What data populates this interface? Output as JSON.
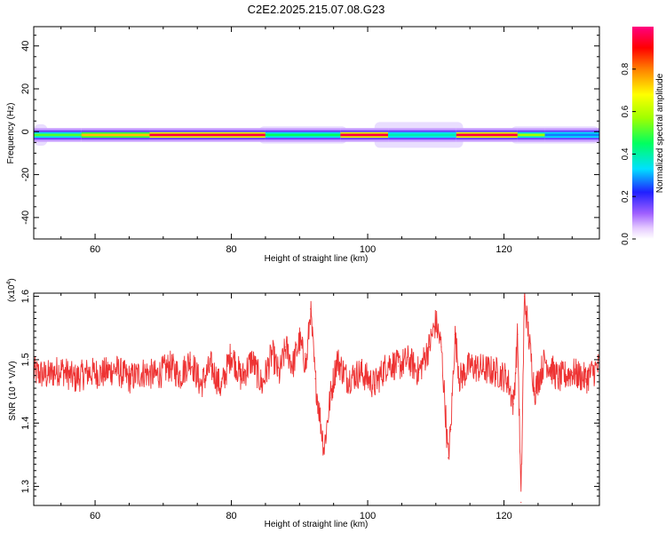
{
  "figure_title": "C2E2.2025.215.07.08.G23",
  "chart_data": [
    {
      "type": "heatmap",
      "xlabel": "Height of straight line (km)",
      "ylabel": "Frequency (Hz)",
      "xlim": [
        51,
        134
      ],
      "ylim": [
        -50,
        49
      ],
      "x_ticks": [
        60,
        80,
        100,
        120
      ],
      "x_tick_labels": [
        "60",
        "80",
        "100",
        "120"
      ],
      "y_ticks": [
        40,
        20,
        0,
        -20,
        -40
      ],
      "y_tick_labels": [
        "40",
        "20",
        "0",
        "-20",
        "-40"
      ],
      "colorbar": {
        "label": "Normalized spectral amplitude",
        "range": [
          0,
          1
        ],
        "ticks": [
          0.0,
          0.2,
          0.4,
          0.6,
          0.8
        ],
        "tick_labels": [
          "0.0",
          "0.2",
          "0.4",
          "0.6",
          "0.8"
        ],
        "colormap": [
          "#ffffff",
          "#e6ccff",
          "#a060ff",
          "#2020ff",
          "#00e0ff",
          "#00ff60",
          "#a0ff00",
          "#ffff00",
          "#ff8000",
          "#ff0000",
          "#ff0080"
        ]
      },
      "ridge": {
        "center_frequency": -1.5,
        "bands": [
          {
            "from": 51,
            "to": 58,
            "intensity": 0.55
          },
          {
            "from": 58,
            "to": 68,
            "intensity": 0.75
          },
          {
            "from": 68,
            "to": 85,
            "intensity": 0.95
          },
          {
            "from": 85,
            "to": 96,
            "intensity": 0.5
          },
          {
            "from": 96,
            "to": 103,
            "intensity": 0.95
          },
          {
            "from": 103,
            "to": 113,
            "intensity": 0.45
          },
          {
            "from": 113,
            "to": 122,
            "intensity": 0.95
          },
          {
            "from": 122,
            "to": 126,
            "intensity": 0.6
          },
          {
            "from": 126,
            "to": 134,
            "intensity": 0.35
          }
        ],
        "halo": [
          {
            "from": 51,
            "to": 53,
            "halfwidth": 5
          },
          {
            "from": 84,
            "to": 97,
            "halfwidth": 4
          },
          {
            "from": 101,
            "to": 114,
            "halfwidth": 6
          },
          {
            "from": 121,
            "to": 134,
            "halfwidth": 4
          }
        ]
      }
    },
    {
      "type": "line",
      "xlabel": "Height of straight line (km)",
      "ylabel": "SNR (10 * V/V)",
      "y_multiplier": "(x10",
      "y_multiplier_exp": "4",
      "y_multiplier_close": ")",
      "xlim": [
        51,
        134
      ],
      "ylim": [
        1.27,
        1.605
      ],
      "x_ticks": [
        60,
        80,
        100,
        120
      ],
      "x_tick_labels": [
        "60",
        "80",
        "100",
        "120"
      ],
      "y_ticks": [
        1.3,
        1.4,
        1.5,
        1.6
      ],
      "y_tick_labels": [
        "1.3",
        "1.4",
        "1.5",
        "1.6"
      ],
      "line_color": "#ee3333",
      "series": [
        {
          "x": [
            51,
            53,
            55,
            57,
            59,
            61,
            63,
            65,
            67,
            69,
            71,
            72.5,
            74,
            75.5,
            77,
            78.5,
            80,
            81.5,
            83,
            84.5,
            86,
            87,
            88,
            89,
            90,
            91,
            91.6,
            92.3,
            93,
            93.6,
            94.5,
            95.5,
            97,
            99,
            101,
            103,
            104.5,
            106,
            107.5,
            109,
            110,
            110.8,
            111.4,
            111.8,
            112.2,
            112.8,
            113.5,
            115,
            117,
            119,
            120.5,
            121.4,
            122,
            122.5,
            123,
            123.5,
            124.5,
            126,
            128,
            130,
            132,
            134
          ],
          "y": [
            1.48,
            1.475,
            1.485,
            1.47,
            1.48,
            1.478,
            1.485,
            1.47,
            1.48,
            1.475,
            1.49,
            1.475,
            1.5,
            1.46,
            1.49,
            1.455,
            1.51,
            1.47,
            1.5,
            1.46,
            1.51,
            1.475,
            1.52,
            1.49,
            1.53,
            1.49,
            1.58,
            1.47,
            1.41,
            1.36,
            1.44,
            1.5,
            1.47,
            1.48,
            1.46,
            1.495,
            1.49,
            1.5,
            1.48,
            1.52,
            1.56,
            1.52,
            1.42,
            1.345,
            1.39,
            1.54,
            1.47,
            1.49,
            1.485,
            1.48,
            1.47,
            1.43,
            1.54,
            1.275,
            1.6,
            1.55,
            1.45,
            1.5,
            1.47,
            1.48,
            1.47,
            1.49
          ]
        }
      ]
    }
  ]
}
